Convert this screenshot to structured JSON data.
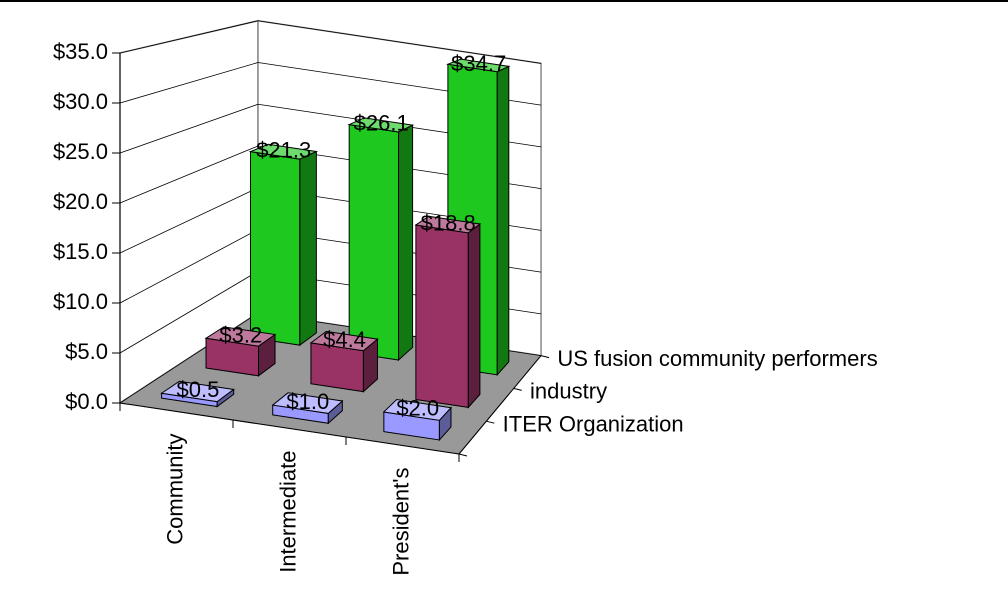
{
  "chart_data": {
    "type": "bar3d",
    "categories": [
      "Community",
      "Intermediate",
      "President's"
    ],
    "series": [
      {
        "name": "ITER Organization",
        "color": "#9999ff",
        "values": [
          0.5,
          1.0,
          2.0
        ],
        "value_labels": [
          "$0.5",
          "$1.0",
          "$2.0"
        ]
      },
      {
        "name": "industry",
        "color": "#993366",
        "values": [
          3.2,
          4.4,
          18.8
        ],
        "value_labels": [
          "$3.2",
          "$4.4",
          "$18.8"
        ]
      },
      {
        "name": "US fusion community performers",
        "color": "#1ec81e",
        "values": [
          21.3,
          26.1,
          34.7
        ],
        "value_labels": [
          "$21.3",
          "$26.1",
          "$34.7"
        ]
      }
    ],
    "ylim": [
      0,
      35
    ],
    "yticks": [
      {
        "value": 0,
        "label": "$0.0"
      },
      {
        "value": 5,
        "label": "$5.0"
      },
      {
        "value": 10,
        "label": "$10.0"
      },
      {
        "value": 15,
        "label": "$15.0"
      },
      {
        "value": 20,
        "label": "$20.0"
      },
      {
        "value": 25,
        "label": "$25.0"
      },
      {
        "value": 30,
        "label": "$30.0"
      },
      {
        "value": 35,
        "label": "$35.0"
      }
    ],
    "grid": true
  }
}
